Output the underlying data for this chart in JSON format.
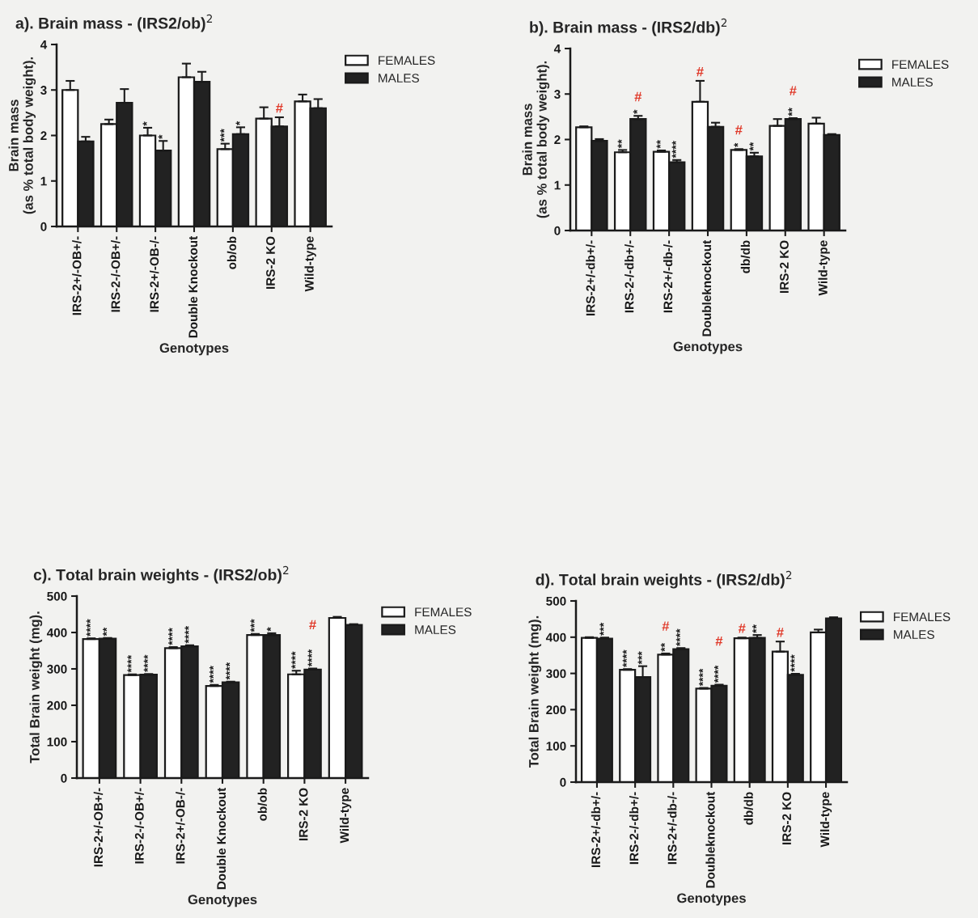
{
  "chart_data": [
    {
      "type": "bar",
      "title": "a). Brain mass - (IRS2/ob)$^{2}$",
      "xlabel": "Genotypes",
      "ylabel": "Brain mass\n(as % total body weight).",
      "categories": [
        "IRS-2+/-OB+/-",
        "IRS-2-/-OB+/-",
        "IRS-2+/-OB-/-",
        "Double Knockout",
        "ob/ob",
        "IRS-2 KO",
        "Wild-type"
      ],
      "ylim": [
        0,
        4
      ],
      "yticks": [
        0,
        1,
        2,
        3,
        4
      ],
      "grid": false,
      "legend": "right",
      "series": [
        {
          "name": "FEMALES",
          "color": "#ffffff",
          "values": [
            3.0,
            2.25,
            2.0,
            3.28,
            1.7,
            2.37,
            2.75
          ],
          "errors": [
            [
              3.0,
              3.2
            ],
            [
              2.25,
              2.35
            ],
            [
              2.0,
              2.17
            ],
            [
              3.28,
              3.58
            ],
            [
              1.7,
              1.82
            ],
            [
              2.37,
              2.62
            ],
            [
              2.75,
              2.9
            ]
          ],
          "value_labels": [
            null,
            null,
            "*",
            null,
            "***",
            null,
            null
          ]
        },
        {
          "name": "MALES",
          "color": "#222222",
          "values": [
            1.87,
            2.72,
            1.67,
            3.18,
            2.03,
            2.2,
            2.6
          ],
          "errors": [
            [
              1.87,
              1.97
            ],
            [
              2.72,
              3.02
            ],
            [
              1.67,
              1.88
            ],
            [
              3.18,
              3.4
            ],
            [
              2.03,
              2.18
            ],
            [
              2.2,
              2.4
            ],
            [
              2.6,
              2.8
            ]
          ],
          "value_labels": [
            null,
            null,
            "*",
            null,
            "*",
            "#",
            null
          ]
        }
      ]
    },
    {
      "type": "bar",
      "title": "b). Brain mass - (IRS2/db)$^{2}$",
      "xlabel": "Genotypes",
      "ylabel": "Brain mass\n(as % total body weight).",
      "categories": [
        "IRS-2+/-db+/-",
        "IRS-2-/-db+/-",
        "IRS-2+/-db-/-",
        "Doubleknockout",
        "db/db",
        "IRS-2 KO",
        "Wild-type"
      ],
      "ylim": [
        0,
        4
      ],
      "yticks": [
        0,
        1,
        2,
        3,
        4
      ],
      "grid": false,
      "legend": "right",
      "series": [
        {
          "name": "FEMALES",
          "color": "#ffffff",
          "values": [
            2.27,
            1.72,
            1.73,
            2.83,
            1.77,
            2.3,
            2.35
          ],
          "errors": [
            [
              2.27,
              2.29
            ],
            [
              1.72,
              1.77
            ],
            [
              1.73,
              1.76
            ],
            [
              2.83,
              3.29
            ],
            [
              1.77,
              1.79
            ],
            [
              2.3,
              2.45
            ],
            [
              2.35,
              2.48
            ]
          ],
          "value_labels": [
            null,
            "**",
            "**",
            "#",
            "*#",
            null,
            null
          ]
        },
        {
          "name": "MALES",
          "color": "#222222",
          "values": [
            1.97,
            2.45,
            1.5,
            2.28,
            1.63,
            2.45,
            2.1
          ],
          "errors": [
            [
              1.97,
              2.01
            ],
            [
              2.45,
              2.52
            ],
            [
              1.5,
              1.55
            ],
            [
              2.28,
              2.37
            ],
            [
              1.63,
              1.71
            ],
            [
              2.45,
              2.47
            ],
            [
              2.1,
              2.12
            ]
          ],
          "value_labels": [
            null,
            "*#",
            "****",
            null,
            "**",
            "**#",
            null
          ]
        }
      ]
    },
    {
      "type": "bar",
      "title": "c). Total brain weights - (IRS2/ob)$^{2}$",
      "xlabel": "Genotypes",
      "ylabel": "Total Brain weight (mg).",
      "categories": [
        "IRS-2+/-OB+/-",
        "IRS-2-/-OB+/-",
        "IRS-2+/-OB-/-",
        "Double Knockout",
        "ob/ob",
        "IRS-2 KO",
        "Wild-type"
      ],
      "ylim": [
        0,
        500
      ],
      "yticks": [
        0,
        100,
        200,
        300,
        400,
        500
      ],
      "grid": false,
      "legend": "right",
      "series": [
        {
          "name": "FEMALES",
          "color": "#ffffff",
          "values": [
            382,
            283,
            357,
            253,
            393,
            285,
            440
          ],
          "errors": [
            [
              382,
              384
            ],
            [
              283,
              285
            ],
            [
              357,
              360
            ],
            [
              253,
              256
            ],
            [
              393,
              396
            ],
            [
              285,
              295
            ],
            [
              440,
              443
            ]
          ],
          "value_labels": [
            "****",
            "****",
            "****",
            "****",
            "***",
            "****",
            null
          ]
        },
        {
          "name": "MALES",
          "color": "#222222",
          "values": [
            383,
            284,
            362,
            263,
            393,
            298,
            421
          ],
          "errors": [
            [
              383,
              385
            ],
            [
              284,
              286
            ],
            [
              362,
              365
            ],
            [
              263,
              265
            ],
            [
              393,
              398
            ],
            [
              298,
              301
            ],
            [
              421,
              423
            ]
          ],
          "value_labels": [
            "**",
            "****",
            "****",
            "****",
            "*",
            "****#",
            null
          ]
        }
      ]
    },
    {
      "type": "bar",
      "title": "d). Total brain weights - (IRS2/db)$^{2}$",
      "xlabel": "Genotypes",
      "ylabel": "Total Brain weight (mg).",
      "categories": [
        "IRS-2+/-db+/-",
        "IRS-2-/-db+/-",
        "IRS-2+/-db-/-",
        "Doubleknockout",
        "db/db",
        "IRS-2 KO",
        "Wild-type"
      ],
      "ylim": [
        0,
        500
      ],
      "yticks": [
        0,
        100,
        200,
        300,
        400,
        500
      ],
      "grid": false,
      "legend": "right",
      "series": [
        {
          "name": "FEMALES",
          "color": "#ffffff",
          "values": [
            398,
            310,
            352,
            258,
            397,
            360,
            413
          ],
          "errors": [
            [
              398,
              400
            ],
            [
              310,
              312
            ],
            [
              352,
              355
            ],
            [
              258,
              260
            ],
            [
              397,
              399
            ],
            [
              360,
              388
            ],
            [
              413,
              421
            ]
          ],
          "value_labels": [
            null,
            "****",
            "**#",
            "****",
            "#",
            "#",
            null
          ]
        },
        {
          "name": "MALES",
          "color": "#222222",
          "values": [
            396,
            290,
            367,
            266,
            398,
            296,
            452
          ],
          "errors": [
            [
              396,
              399
            ],
            [
              290,
              320
            ],
            [
              367,
              370
            ],
            [
              266,
              269
            ],
            [
              398,
              406
            ],
            [
              296,
              299
            ],
            [
              452,
              455
            ]
          ],
          "value_labels": [
            "***",
            "***",
            "****",
            "****#",
            "**",
            "****",
            null
          ]
        }
      ]
    }
  ]
}
